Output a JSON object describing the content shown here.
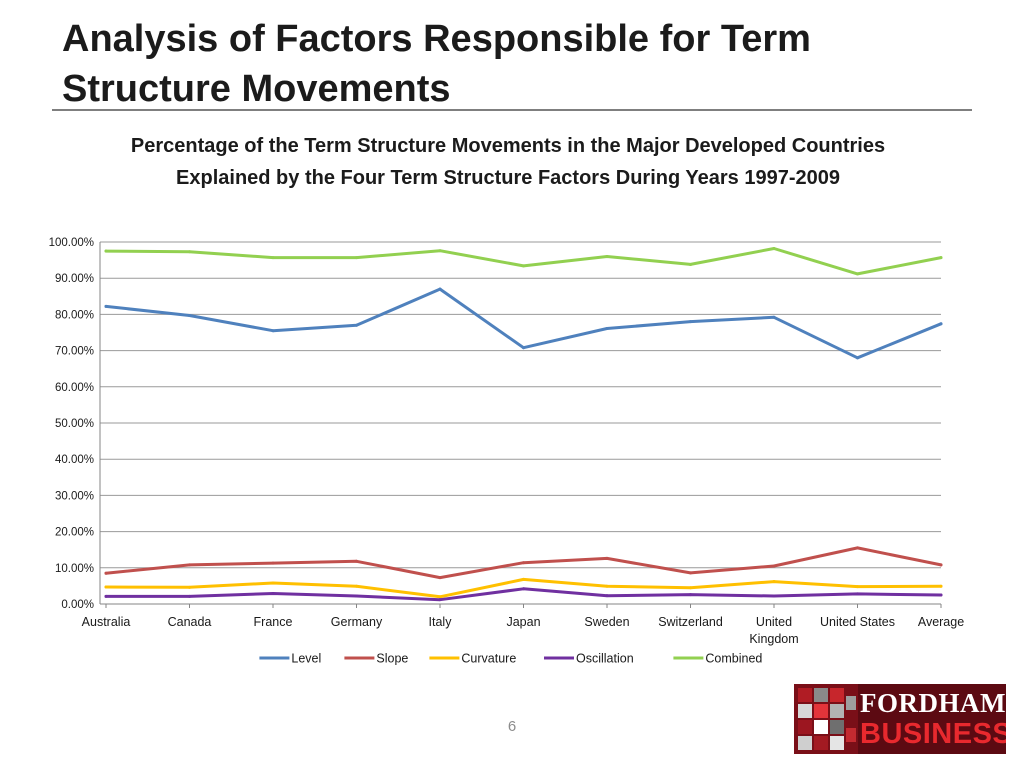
{
  "slide": {
    "title": "Analysis of Factors Responsible for Term Structure Movements",
    "page_number": "6",
    "logo": {
      "line1": "FORDHAM",
      "line2": "BUSINESS",
      "colors": {
        "background": "#5c0a12",
        "line1": "#ffffff",
        "line2": "#e8292e"
      }
    }
  },
  "chart_data": {
    "type": "line",
    "title": "Percentage of the Term Structure Movements in the Major Developed Countries Explained by the Four Term Structure Factors During Years 1997-2009",
    "xlabel": "",
    "ylabel": "",
    "categories": [
      "Australia",
      "Canada",
      "France",
      "Germany",
      "Italy",
      "Japan",
      "Sweden",
      "Switzerland",
      "United Kingdom",
      "United States",
      "Average"
    ],
    "y_ticks": [
      "0.00%",
      "10.00%",
      "20.00%",
      "30.00%",
      "40.00%",
      "50.00%",
      "60.00%",
      "70.00%",
      "80.00%",
      "90.00%",
      "100.00%"
    ],
    "ylim": [
      0,
      100
    ],
    "grid": true,
    "legend_position": "bottom",
    "series": [
      {
        "name": "Level",
        "color": "#4f81bd",
        "values": [
          82.2,
          79.7,
          75.5,
          77.0,
          87.0,
          70.8,
          76.1,
          78.0,
          79.2,
          68.0,
          77.4
        ]
      },
      {
        "name": "Slope",
        "color": "#c0504d",
        "values": [
          8.5,
          10.8,
          11.3,
          11.8,
          7.3,
          11.4,
          12.6,
          8.6,
          10.5,
          15.5,
          10.8
        ]
      },
      {
        "name": "Curvature",
        "color": "#ffc000",
        "values": [
          4.7,
          4.6,
          5.8,
          4.9,
          2.0,
          6.8,
          4.9,
          4.5,
          6.2,
          4.8,
          4.9
        ]
      },
      {
        "name": "Oscillation",
        "color": "#7030a0",
        "values": [
          2.1,
          2.1,
          2.9,
          2.2,
          1.2,
          4.2,
          2.3,
          2.6,
          2.2,
          2.8,
          2.5
        ]
      },
      {
        "name": "Combined",
        "color": "#92d050",
        "values": [
          97.5,
          97.3,
          95.7,
          95.7,
          97.6,
          93.4,
          96.0,
          93.8,
          98.2,
          91.2,
          95.7
        ]
      }
    ]
  }
}
